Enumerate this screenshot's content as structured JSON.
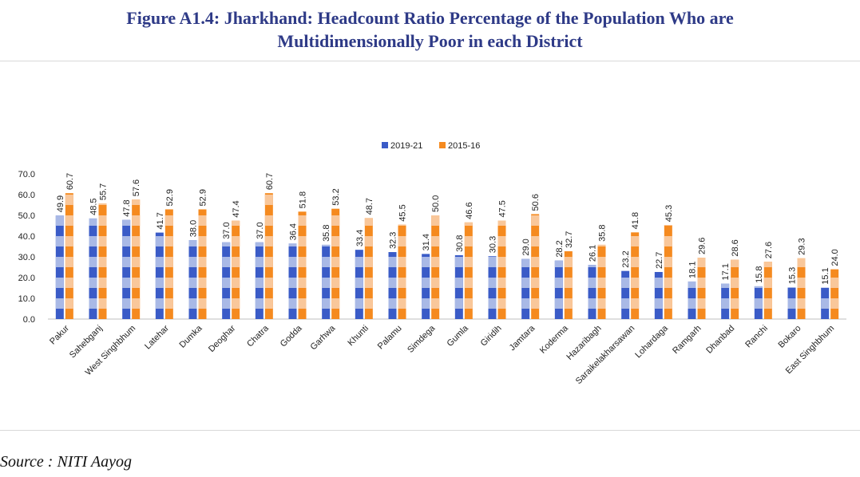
{
  "title_line1": "Figure A1.4: Jharkhand: Headcount Ratio Percentage of the Population Who are",
  "title_line2": "Multidimensionally Poor in each District",
  "source": "Source : NITI Aayog",
  "colors": {
    "series_2019": "#3a5bc7",
    "series_2019_light": "#a9b9e6",
    "series_2015": "#f58a1f",
    "series_2015_light": "#f9c79a"
  },
  "chart_data": {
    "type": "bar",
    "title": "",
    "xlabel": "",
    "ylabel": "",
    "ylim": [
      0,
      70
    ],
    "yticks": [
      "0.0",
      "10.0",
      "20.0",
      "30.0",
      "40.0",
      "50.0",
      "60.0",
      "70.0"
    ],
    "grid": false,
    "legend_position": "top-center",
    "categories": [
      "Pakur",
      "Sahebganj",
      "West Singhbhum",
      "Latehar",
      "Dumka",
      "Deoghar",
      "Chatra",
      "Godda",
      "Garhwa",
      "Khunti",
      "Palamu",
      "Simdega",
      "Gumla",
      "Giridih",
      "Jamtara",
      "Koderma",
      "Hazaribagh",
      "Saraikelakharsawan",
      "Lohardaga",
      "Ramgarh",
      "Dhanbad",
      "Ranchi",
      "Bokaro",
      "East Singhbhum"
    ],
    "series": [
      {
        "name": "2019-21",
        "values": [
          49.9,
          48.5,
          47.8,
          41.7,
          38.0,
          37.0,
          37.0,
          36.4,
          35.8,
          33.4,
          32.3,
          31.4,
          30.8,
          30.3,
          29.0,
          28.2,
          26.1,
          23.2,
          22.7,
          18.1,
          17.1,
          15.8,
          15.3,
          15.1
        ]
      },
      {
        "name": "2015-16",
        "values": [
          60.7,
          55.7,
          57.6,
          52.9,
          52.9,
          47.4,
          60.7,
          51.8,
          53.2,
          48.7,
          45.5,
          50.0,
          46.6,
          47.5,
          50.6,
          32.7,
          35.8,
          41.8,
          45.3,
          29.6,
          28.6,
          27.6,
          29.3,
          24.0
        ]
      }
    ],
    "value_labels": {
      "2019-21": [
        "49.9",
        "48.5",
        "47.8",
        "41.7",
        "38.0",
        "37.0",
        "37.0",
        "36.4",
        "35.8",
        "33.4",
        "32.3",
        "31.4",
        "30.8",
        "30.3",
        "29.0",
        "28.2",
        "26.1",
        "23.2",
        "22.7",
        "18.1",
        "17.1",
        "15.8",
        "15.3",
        "15.1"
      ],
      "2015-16": [
        "60.7",
        "55.7",
        "57.6",
        "52.9",
        "52.9",
        "47.4",
        "60.7",
        "51.8",
        "53.2",
        "48.7",
        "45.5",
        "50.0",
        "46.6",
        "47.5",
        "50.6",
        "32.7",
        "35.8",
        "41.8",
        "45.3",
        "29.6",
        "28.6",
        "27.6",
        "29.3",
        "24.0"
      ]
    }
  }
}
